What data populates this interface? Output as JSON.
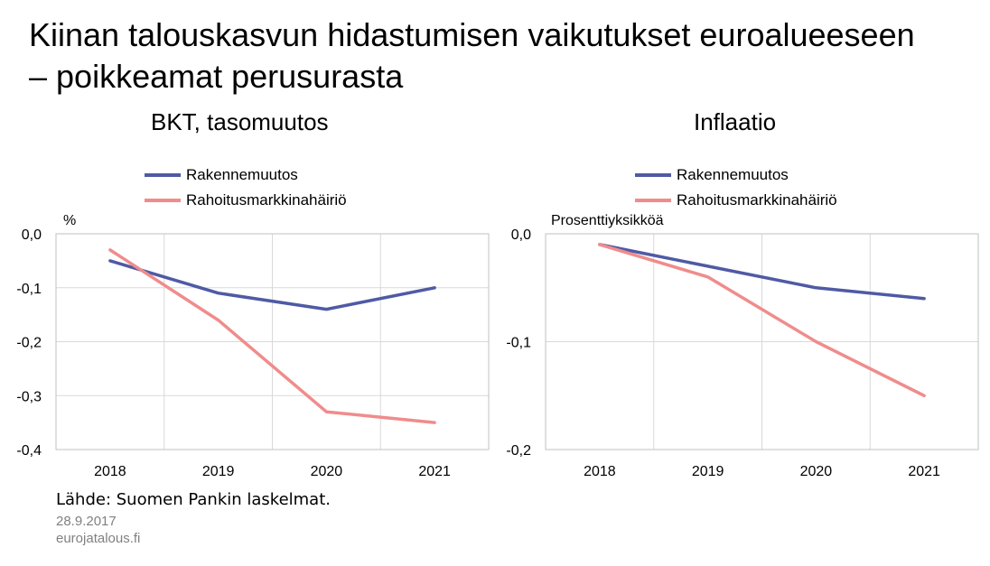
{
  "title_line1": "Kiinan talouskasvun hidastumisen vaikutukset euroalueeseen",
  "title_line2": "– poikkeamat  perusurasta",
  "source": "Lähde: Suomen Pankin laskelmat.",
  "date": "28.9.2017",
  "site": "eurojatalous.fi",
  "colors": {
    "rakennemuutos": "#4f5aa5",
    "rahoitus": "#f08c8c",
    "grid": "#d9d9d9",
    "axis": "#c0c0c0"
  },
  "chart_data": [
    {
      "type": "line",
      "title": "BKT, tasomuutos",
      "ylabel": "%",
      "categories": [
        "2018",
        "2019",
        "2020",
        "2021"
      ],
      "ylim": [
        -0.4,
        0.0
      ],
      "yticks": [
        0.0,
        -0.1,
        -0.2,
        -0.3,
        -0.4
      ],
      "ytick_labels": [
        "0,0",
        "-0,1",
        "-0,2",
        "-0,3",
        "-0,4"
      ],
      "legend_position": "top",
      "series": [
        {
          "name": "Rakennemuutos",
          "values": [
            -0.05,
            -0.11,
            -0.14,
            -0.1
          ]
        },
        {
          "name": "Rahoitusmarkkinahäiriö",
          "values": [
            -0.03,
            -0.16,
            -0.33,
            -0.35
          ]
        }
      ]
    },
    {
      "type": "line",
      "title": "Inflaatio",
      "ylabel": "Prosenttiyksikköä",
      "categories": [
        "2018",
        "2019",
        "2020",
        "2021"
      ],
      "ylim": [
        -0.2,
        0.0
      ],
      "yticks": [
        0.0,
        -0.1,
        -0.2
      ],
      "ytick_labels": [
        "0,0",
        "-0,1",
        "-0,2"
      ],
      "legend_position": "top",
      "series": [
        {
          "name": "Rakennemuutos",
          "values": [
            -0.01,
            -0.03,
            -0.05,
            -0.06
          ]
        },
        {
          "name": "Rahoitusmarkkinahäiriö",
          "values": [
            -0.01,
            -0.04,
            -0.1,
            -0.15
          ]
        }
      ]
    }
  ]
}
